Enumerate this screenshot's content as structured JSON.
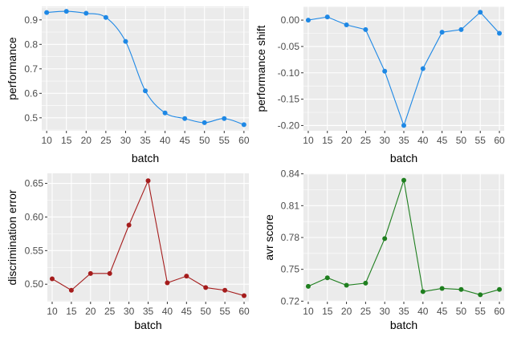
{
  "chart_data": [
    {
      "type": "line",
      "x": [
        10,
        15,
        20,
        25,
        30,
        35,
        40,
        45,
        50,
        55,
        60
      ],
      "xlabel": "batch",
      "ylabel": "performance",
      "xlim": [
        8.75,
        61.25
      ],
      "ylim": [
        0.447,
        0.955
      ],
      "y_ticks": [
        0.5,
        0.6,
        0.7,
        0.8,
        0.9
      ],
      "y_tick_labels": [
        "0.5",
        "0.6",
        "0.7",
        "0.8",
        "0.9"
      ],
      "series": [
        {
          "values": [
            0.93,
            0.935,
            0.927,
            0.91,
            0.812,
            0.61,
            0.52,
            0.497,
            0.48,
            0.497,
            0.472
          ]
        }
      ],
      "color": "#1e88e5",
      "smooth": true,
      "grid": true
    },
    {
      "type": "line",
      "x": [
        10,
        15,
        20,
        25,
        30,
        35,
        40,
        45,
        50,
        55,
        60
      ],
      "xlabel": "batch",
      "ylabel": "performance shift",
      "xlim": [
        8.75,
        61.25
      ],
      "ylim": [
        -0.21,
        0.026
      ],
      "y_ticks": [
        -0.2,
        -0.15,
        -0.1,
        -0.05,
        0.0
      ],
      "y_tick_labels": [
        "-0.20",
        "-0.15",
        "-0.10",
        "-0.05",
        "0.00"
      ],
      "series": [
        {
          "values": [
            0.0,
            0.006,
            -0.009,
            -0.018,
            -0.097,
            -0.2,
            -0.092,
            -0.023,
            -0.018,
            0.015,
            -0.025
          ]
        }
      ],
      "color": "#1e88e5",
      "smooth": false,
      "grid": true
    },
    {
      "type": "line",
      "x": [
        10,
        15,
        20,
        25,
        30,
        35,
        40,
        45,
        50,
        55,
        60
      ],
      "xlabel": "batch",
      "ylabel": "discrimination error",
      "xlim": [
        8.75,
        61.25
      ],
      "ylim": [
        0.474,
        0.665
      ],
      "y_ticks": [
        0.5,
        0.55,
        0.6,
        0.65
      ],
      "y_tick_labels": [
        "0.50",
        "0.55",
        "0.60",
        "0.65"
      ],
      "series": [
        {
          "values": [
            0.508,
            0.491,
            0.516,
            0.516,
            0.588,
            0.654,
            0.502,
            0.512,
            0.495,
            0.491,
            0.483
          ]
        }
      ],
      "color": "#a51c1c",
      "smooth": false,
      "grid": true
    },
    {
      "type": "line",
      "x": [
        10,
        15,
        20,
        25,
        30,
        35,
        40,
        45,
        50,
        55,
        60
      ],
      "xlabel": "batch",
      "ylabel": "avr score",
      "xlim": [
        8.75,
        61.25
      ],
      "ylim": [
        0.7195,
        0.8405
      ],
      "y_ticks": [
        0.72,
        0.75,
        0.78,
        0.81,
        0.84
      ],
      "y_tick_labels": [
        "0.72",
        "0.75",
        "0.78",
        "0.81",
        "0.84"
      ],
      "series": [
        {
          "values": [
            0.734,
            0.742,
            0.735,
            0.737,
            0.779,
            0.834,
            0.729,
            0.732,
            0.731,
            0.726,
            0.731
          ]
        }
      ],
      "color": "#1f7f1f",
      "smooth": false,
      "grid": true
    }
  ]
}
